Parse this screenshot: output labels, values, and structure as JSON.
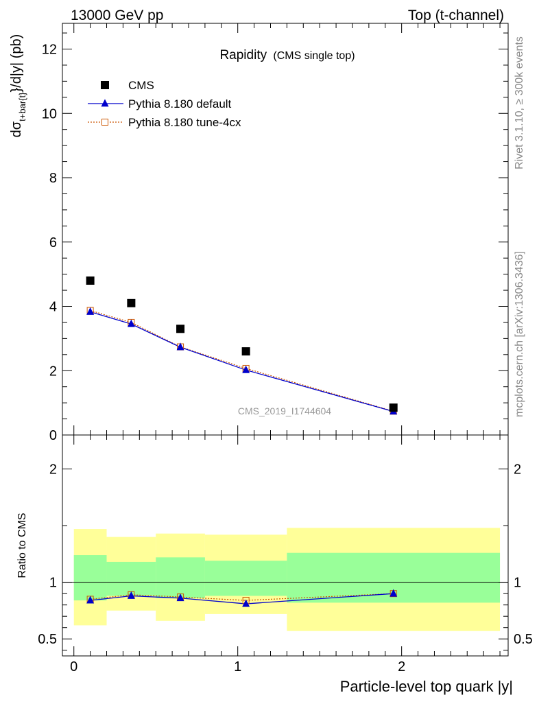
{
  "header": {
    "left": "13000 GeV pp",
    "right": "Top (t-channel)"
  },
  "side_labels": {
    "rivet": "Rivet 3.1.10, ≥ 300k events",
    "mcplots": "mcplots.cern.ch [arXiv:1306.3436]"
  },
  "colors": {
    "data": "#000000",
    "default": "#0000cc",
    "tune": "#cc5500",
    "band_inner": "#99ff99",
    "band_outer": "#ffff99"
  },
  "chart_data": [
    {
      "type": "scatter",
      "title": "Rapidity",
      "subtitle": "(CMS single top)",
      "ylabel_main": "dσ",
      "ylabel_sub": "t+bar{t}",
      "ylabel_rest": "}/d|y|  (pb)",
      "watermark": "CMS_2019_I1744604",
      "xlim": [
        -0.07,
        2.65
      ],
      "ylim": [
        0,
        12.8
      ],
      "yticks": [
        0,
        2,
        4,
        6,
        8,
        10,
        12
      ],
      "ytick_labels": [
        "0",
        "2",
        "4",
        "6",
        "8",
        "10",
        "12"
      ],
      "legend_position": "top-left",
      "x": [
        0.1,
        0.35,
        0.65,
        1.05,
        1.95
      ],
      "series": [
        {
          "name": "CMS",
          "marker": "square",
          "values": [
            4.8,
            4.1,
            3.3,
            2.6,
            0.85
          ]
        },
        {
          "name": "Pythia 8.180 default",
          "marker": "triangle",
          "values": [
            3.83,
            3.45,
            2.73,
            2.02,
            0.73
          ]
        },
        {
          "name": "Pythia 8.180 tune-4cx",
          "marker": "open-square",
          "values": [
            3.87,
            3.5,
            2.74,
            2.07,
            0.74
          ]
        }
      ]
    },
    {
      "type": "scatter",
      "ylabel": "Ratio to CMS",
      "xlabel": "Particle-level top quark |y|",
      "xlim": [
        -0.07,
        2.65
      ],
      "ylim": [
        0.35,
        2.3
      ],
      "yticks": [
        0.5,
        1,
        2
      ],
      "ytick_labels": [
        "0.5",
        "1",
        "2"
      ],
      "xticks": [
        0,
        1,
        2
      ],
      "xtick_labels": [
        "0",
        "1",
        "2"
      ],
      "bins": [
        [
          0.0,
          0.2
        ],
        [
          0.2,
          0.5
        ],
        [
          0.5,
          0.8
        ],
        [
          0.8,
          1.3
        ],
        [
          1.3,
          2.6
        ]
      ],
      "band_inner": [
        [
          0.84,
          1.24
        ],
        [
          0.88,
          1.18
        ],
        [
          0.86,
          1.22
        ],
        [
          0.88,
          1.19
        ],
        [
          0.82,
          1.26
        ]
      ],
      "band_outer": [
        [
          0.62,
          1.47
        ],
        [
          0.75,
          1.4
        ],
        [
          0.66,
          1.43
        ],
        [
          0.72,
          1.42
        ],
        [
          0.57,
          1.48
        ]
      ],
      "reference": 1,
      "x": [
        0.1,
        0.35,
        0.65,
        1.05,
        1.95
      ],
      "series": [
        {
          "name": "Pythia 8.180 default",
          "values": [
            0.84,
            0.88,
            0.86,
            0.81,
            0.9
          ]
        },
        {
          "name": "Pythia 8.180 tune-4cx",
          "values": [
            0.85,
            0.89,
            0.87,
            0.84,
            0.9
          ]
        }
      ]
    }
  ]
}
